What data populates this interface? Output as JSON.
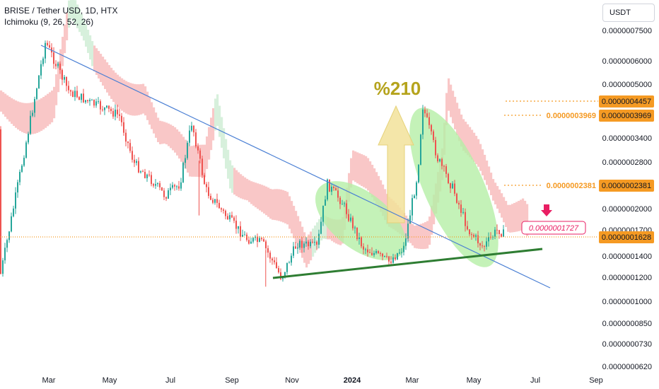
{
  "header": {
    "title": "BRISE / Tether USD, 1D, HTX",
    "indicator": "Ichimoku (9, 26, 52, 26)",
    "unit": "USDT"
  },
  "colors": {
    "up": "#26a69a",
    "down": "#ef5350",
    "cloud_bear": "#f9c7c7",
    "cloud_bull": "#d7f0dc",
    "trendline": "#4a7fd4",
    "support": "#2e7d32",
    "ellipse": "#b5efa6",
    "arrow": "#f2e29a",
    "annotation": "#b5a31c",
    "orange": "#f59a23",
    "pink": "#e91e63"
  },
  "annotation_text": "%210",
  "chart_data": {
    "type": "candlestick",
    "title": "BRISE / Tether USD, 1D, HTX",
    "y_scale": "log",
    "y_ticks": [
      "0.0000007500",
      "0.0000006000",
      "0.0000005000",
      "0.0000003400",
      "0.0000002800",
      "0.0000002000",
      "0.0000001700",
      "0.0000001400",
      "0.0000001200",
      "0.0000001000",
      "0.0000000850",
      "0.0000000730",
      "0.0000000620"
    ],
    "x_ticks": [
      "Mar",
      "May",
      "Jul",
      "Sep",
      "Nov",
      "2024",
      "Mar",
      "May",
      "Jul",
      "Sep"
    ],
    "current_price": "0.0000001628",
    "level_labels": [
      "0.0000004457",
      "0.0000003969",
      "0.0000002381"
    ],
    "level_left_labels": [
      "0.0000003969",
      "0.0000002381"
    ],
    "marker_label": "0.0000001727",
    "series_path": [
      [
        "2023-02-08",
        3.6e-07
      ],
      [
        "2023-02-25",
        6.9e-07
      ],
      [
        "2023-03-20",
        4.8e-07
      ],
      [
        "2023-04-10",
        4.4e-07
      ],
      [
        "2023-05-10",
        4e-07
      ],
      [
        "2023-05-25",
        2.8e-07
      ],
      [
        "2023-06-10",
        2.5e-07
      ],
      [
        "2023-06-25",
        2.2e-07
      ],
      [
        "2023-07-10",
        2.4e-07
      ],
      [
        "2023-07-22",
        3.8e-07
      ],
      [
        "2023-08-05",
        2.3e-07
      ],
      [
        "2023-08-25",
        1.9e-07
      ],
      [
        "2023-09-15",
        1.6e-07
      ],
      [
        "2023-10-01",
        1.55e-07
      ],
      [
        "2023-10-20",
        1.2e-07
      ],
      [
        "2023-11-05",
        1.55e-07
      ],
      [
        "2023-11-25",
        1.5e-07
      ],
      [
        "2023-12-05",
        2.4e-07
      ],
      [
        "2023-12-20",
        2.1e-07
      ],
      [
        "2024-01-10",
        1.5e-07
      ],
      [
        "2024-02-05",
        1.35e-07
      ],
      [
        "2024-02-20",
        1.5e-07
      ],
      [
        "2024-03-05",
        2.6e-07
      ],
      [
        "2024-03-10",
        4.3e-07
      ],
      [
        "2024-03-25",
        2.9e-07
      ],
      [
        "2024-04-10",
        2.3e-07
      ],
      [
        "2024-04-25",
        1.7e-07
      ],
      [
        "2024-05-10",
        1.5e-07
      ],
      [
        "2024-05-25",
        1.72e-07
      ],
      [
        "2024-06-01",
        1.63e-07
      ]
    ],
    "lows_spikes": [
      [
        "2023-10-05",
        1.12e-07
      ],
      [
        "2023-07-30",
        1.9e-07
      ]
    ],
    "trendlines": [
      {
        "name": "descending resistance",
        "from": [
          "2023-02-20",
          7e-07
        ],
        "to": [
          "2024-07-20",
          1.1e-07
        ]
      },
      {
        "name": "ascending support",
        "from": [
          "2023-10-20",
          1.18e-07
        ],
        "to": [
          "2024-06-25",
          1.47e-07
        ]
      }
    ],
    "horizontal_levels": [
      4.457e-07,
      3.969e-07,
      2.381e-07,
      1.628e-07
    ]
  }
}
